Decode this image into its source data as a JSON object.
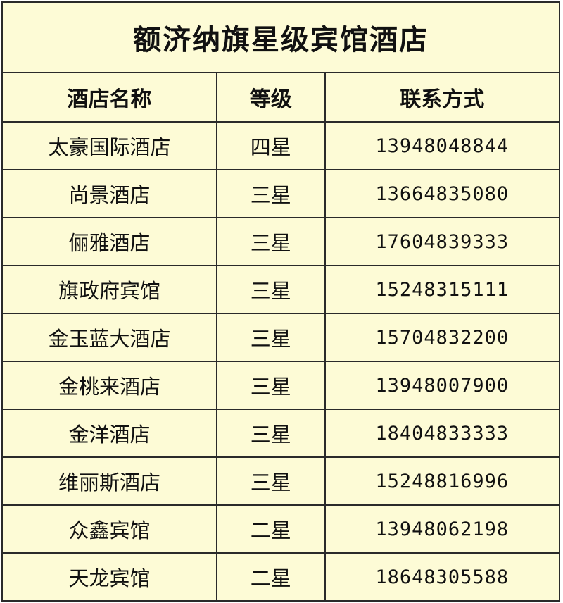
{
  "title": "额济纳旗星级宾馆酒店",
  "headers": [
    "酒店名称",
    "等级",
    "联系方式"
  ],
  "rows": [
    {
      "name": "太豪国际酒店",
      "grade": "四星",
      "phone": "13948048844"
    },
    {
      "name": "尚景酒店",
      "grade": "三星",
      "phone": "13664835080"
    },
    {
      "name": "俪雅酒店",
      "grade": "三星",
      "phone": "17604839333"
    },
    {
      "name": "旗政府宾馆",
      "grade": "三星",
      "phone": "15248315111"
    },
    {
      "name": "金玉蓝大酒店",
      "grade": "三星",
      "phone": "15704832200"
    },
    {
      "name": "金桃来酒店",
      "grade": "三星",
      "phone": "13948007900"
    },
    {
      "name": "金洋酒店",
      "grade": "三星",
      "phone": "18404833333"
    },
    {
      "name": "维丽斯酒店",
      "grade": "三星",
      "phone": "15248816996"
    },
    {
      "name": "众鑫宾馆",
      "grade": "二星",
      "phone": "13948062198"
    },
    {
      "name": "天龙宾馆",
      "grade": "二星",
      "phone": "18648305588"
    }
  ],
  "colors": {
    "background": "#fdfbd6",
    "border": "#2a2a2a"
  }
}
